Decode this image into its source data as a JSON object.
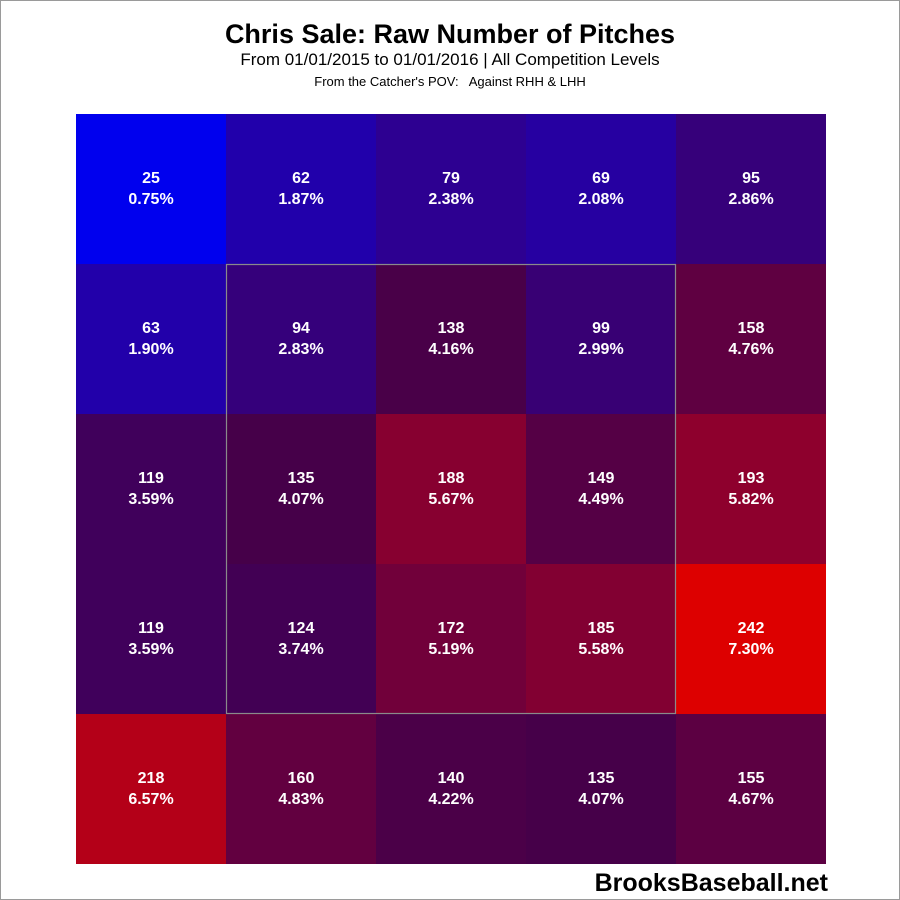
{
  "chart_data": {
    "type": "heatmap",
    "title": "Chris Sale: Raw Number of Pitches",
    "subtitle": "From 01/01/2015 to 01/01/2016 | All Competition Levels",
    "subtitle2": "From the Catcher's POV:   Against RHH & LHH",
    "rows": [
      [
        {
          "count": 25,
          "pct": "0.75%"
        },
        {
          "count": 62,
          "pct": "1.87%"
        },
        {
          "count": 79,
          "pct": "2.38%"
        },
        {
          "count": 69,
          "pct": "2.08%"
        },
        {
          "count": 95,
          "pct": "2.86%"
        }
      ],
      [
        {
          "count": 63,
          "pct": "1.90%"
        },
        {
          "count": 94,
          "pct": "2.83%"
        },
        {
          "count": 138,
          "pct": "4.16%"
        },
        {
          "count": 99,
          "pct": "2.99%"
        },
        {
          "count": 158,
          "pct": "4.76%"
        }
      ],
      [
        {
          "count": 119,
          "pct": "3.59%"
        },
        {
          "count": 135,
          "pct": "4.07%"
        },
        {
          "count": 188,
          "pct": "5.67%"
        },
        {
          "count": 149,
          "pct": "4.49%"
        },
        {
          "count": 193,
          "pct": "5.82%"
        }
      ],
      [
        {
          "count": 119,
          "pct": "3.59%"
        },
        {
          "count": 124,
          "pct": "3.74%"
        },
        {
          "count": 172,
          "pct": "5.19%"
        },
        {
          "count": 185,
          "pct": "5.58%"
        },
        {
          "count": 242,
          "pct": "7.30%"
        }
      ],
      [
        {
          "count": 218,
          "pct": "6.57%"
        },
        {
          "count": 160,
          "pct": "4.83%"
        },
        {
          "count": 140,
          "pct": "4.22%"
        },
        {
          "count": 135,
          "pct": "4.07%"
        },
        {
          "count": 155,
          "pct": "4.67%"
        }
      ]
    ],
    "color_low": "#0000ee",
    "color_high": "#dd0000",
    "strike_zone": {
      "rows": [
        1,
        3
      ],
      "cols": [
        1,
        3
      ]
    },
    "strike_zone_color": "#8a8a8a"
  },
  "watermark": "BrooksBaseball.net"
}
